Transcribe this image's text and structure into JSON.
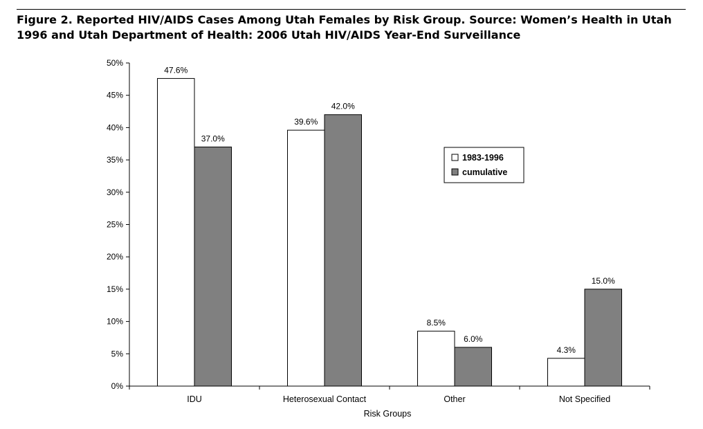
{
  "figure_title": "Figure 2. Reported HIV/AIDS Cases Among Utah Females by Risk Group. Source: Women’s Health in Utah 1996 and Utah Department of Health: 2006 Utah HIV/AIDS Year-End Surveillance",
  "chart_data": {
    "type": "bar",
    "title": "Figure 2. Reported HIV/AIDS Cases Among Utah Females by Risk Group. Source: Women’s Health in Utah 1996 and Utah Department of Health: 2006 Utah HIV/AIDS Year-End Surveillance",
    "xlabel": "Risk Groups",
    "ylabel": "",
    "ylim": [
      0,
      50
    ],
    "yticks": [
      0,
      5,
      10,
      15,
      20,
      25,
      30,
      35,
      40,
      45,
      50
    ],
    "ytick_labels": [
      "0%",
      "5%",
      "10%",
      "15%",
      "20%",
      "25%",
      "30%",
      "35%",
      "40%",
      "45%",
      "50%"
    ],
    "categories": [
      "IDU",
      "Heterosexual Contact",
      "Other",
      "Not Specified"
    ],
    "series": [
      {
        "name": "1983-1996",
        "color": "#ffffff",
        "values": [
          47.6,
          39.6,
          8.5,
          4.3
        ],
        "labels": [
          "47.6%",
          "39.6%",
          "8.5%",
          "4.3%"
        ]
      },
      {
        "name": "cumulative",
        "color": "#808080",
        "values": [
          37.0,
          42.0,
          6.0,
          15.0
        ],
        "labels": [
          "37.0%",
          "42.0%",
          "6.0%",
          "15.0%"
        ]
      }
    ],
    "grid": false,
    "legend_position": "right"
  }
}
